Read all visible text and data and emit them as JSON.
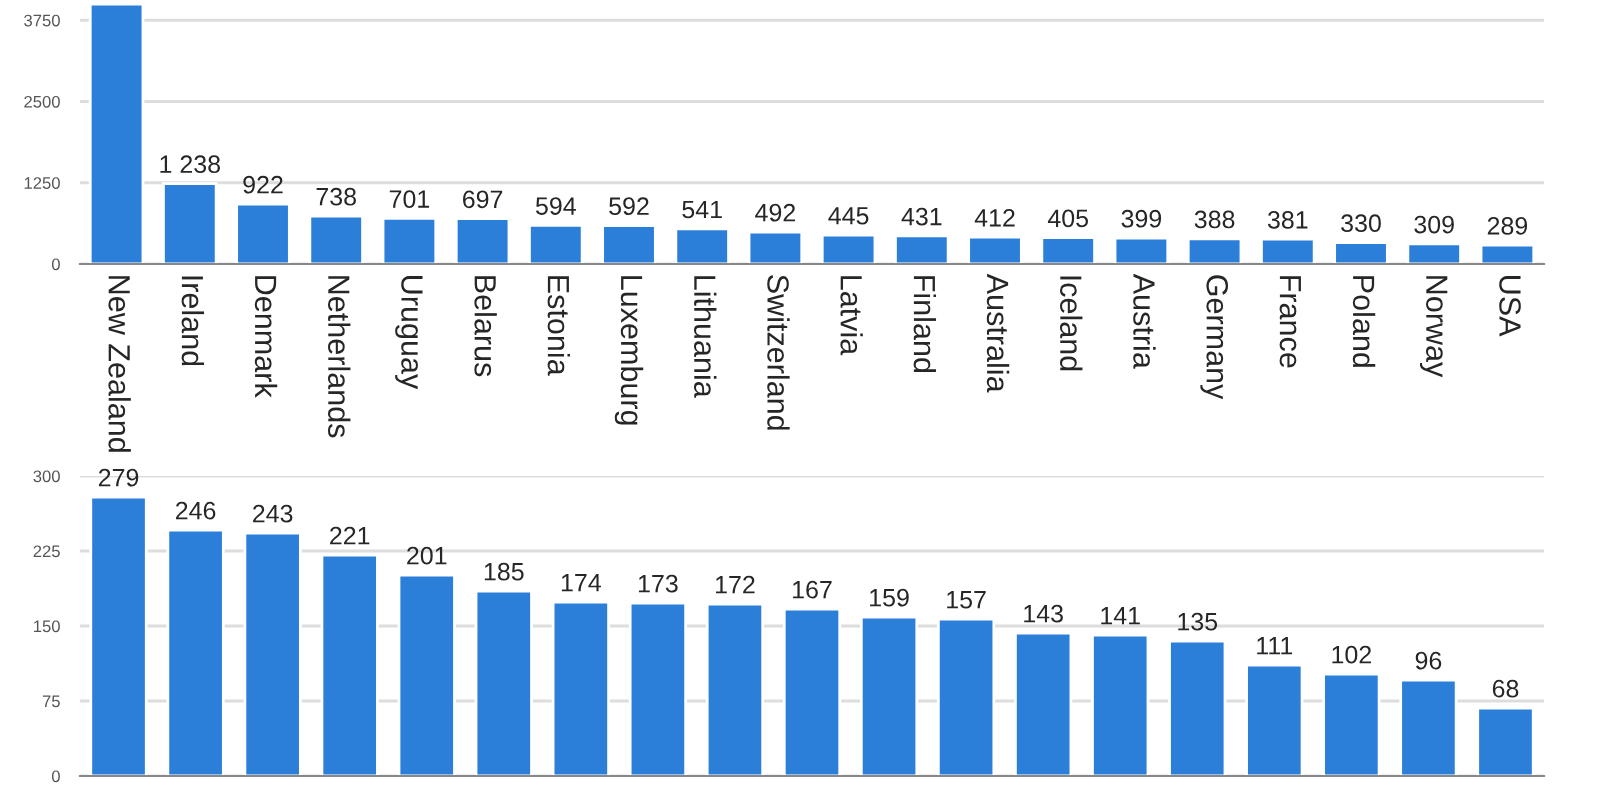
{
  "chart_data": [
    {
      "type": "bar",
      "categories": [
        "New Zealand",
        "Ireland",
        "Denmark",
        "Netherlands",
        "Uruguay",
        "Belarus",
        "Estonia",
        "Luxemburg",
        "Lithuania",
        "Switzerland",
        "Latvia",
        "Finland",
        "Australia",
        "Iceland",
        "Austria",
        "Germany",
        "France",
        "Poland",
        "Norway",
        "USA"
      ],
      "values": [
        4000,
        1238,
        922,
        738,
        701,
        697,
        594,
        592,
        541,
        492,
        445,
        431,
        412,
        405,
        399,
        388,
        381,
        330,
        309,
        289
      ],
      "value_labels": [
        null,
        "1 238",
        "922",
        "738",
        "701",
        "697",
        "594",
        "592",
        "541",
        "492",
        "445",
        "431",
        "412",
        "405",
        "399",
        "388",
        "381",
        "330",
        "309",
        "289"
      ],
      "color": "#2b7fd9",
      "ylim": [
        0,
        4000
      ],
      "yticks": [
        0,
        1250,
        2500,
        3750
      ],
      "grid": "y"
    },
    {
      "type": "bar",
      "categories": [
        null,
        null,
        null,
        null,
        null,
        null,
        null,
        null,
        null,
        null,
        null,
        null,
        null,
        null,
        null,
        null,
        null,
        null,
        null
      ],
      "values": [
        279,
        246,
        243,
        221,
        201,
        185,
        174,
        173,
        172,
        167,
        159,
        157,
        143,
        141,
        135,
        111,
        102,
        96,
        68
      ],
      "color": "#2b7fd9",
      "ylim": [
        0,
        300
      ],
      "yticks": [
        0,
        75,
        150,
        225,
        300
      ],
      "grid": "y",
      "data_labels": true
    }
  ]
}
